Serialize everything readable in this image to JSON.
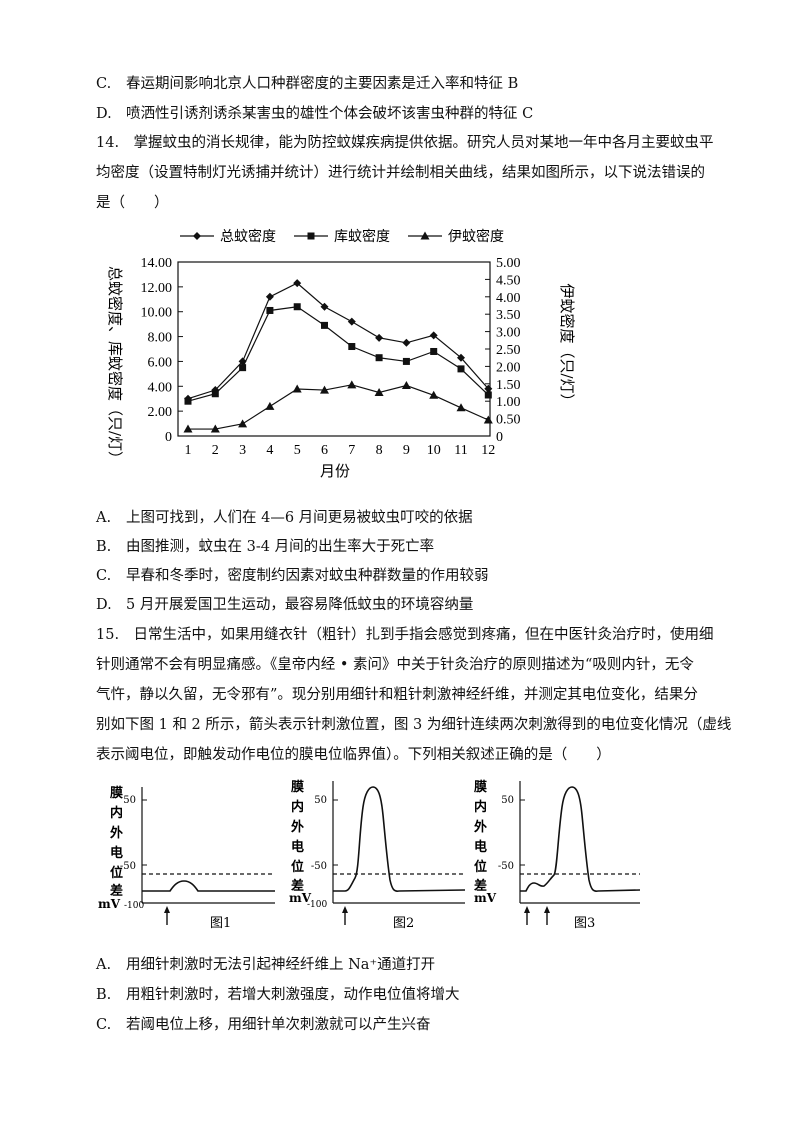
{
  "q13": {
    "optC": {
      "label": "C.",
      "text": "春运期间影响北京人口种群密度的主要因素是迁入率和特征 B"
    },
    "optD": {
      "label": "D.",
      "text": "喷洒性引诱剂诱杀某害虫的雄性个体会破坏该害虫种群的特征 C"
    }
  },
  "q14": {
    "stem": [
      "14.　掌握蚊虫的消长规律，能为防控蚊媒疾病提供依据。研究人员对某地一年中各月主要蚊虫平",
      "均密度（设置特制灯光诱捕并统计）进行统计并绘制相关曲线，结果如图所示，以下说法错误的",
      "是（　　）"
    ],
    "options": [
      {
        "label": "A.",
        "text": "上图可找到，人们在 4—6 月间更易被蚊虫叮咬的依据"
      },
      {
        "label": "B.",
        "text": "由图推测，蚊虫在 3-4 月间的出生率大于死亡率"
      },
      {
        "label": "C.",
        "text": "早春和冬季时，密度制约因素对蚊虫种群数量的作用较弱"
      },
      {
        "label": "D.",
        "text": "5 月开展爱国卫生运动，最容易降低蚊虫的环境容纳量"
      }
    ]
  },
  "chart_data": {
    "type": "line",
    "x": [
      1,
      2,
      3,
      4,
      5,
      6,
      7,
      8,
      9,
      10,
      11,
      12
    ],
    "xlabel": "月份",
    "ylabel": "总蚊密度、库蚊密度（只/灯）",
    "y2label": "伊蚊密度（只/灯）",
    "ylim": [
      0,
      14
    ],
    "y2lim": [
      0,
      5
    ],
    "yticks": [
      "0",
      "2.00",
      "4.00",
      "6.00",
      "8.00",
      "10.00",
      "12.00",
      "14.00"
    ],
    "y2ticks": [
      "0",
      "0.50",
      "1.00",
      "1.50",
      "2.00",
      "2.50",
      "3.00",
      "3.50",
      "4.00",
      "4.50",
      "5.00"
    ],
    "series": [
      {
        "name": "总蚊密度",
        "marker": "diamond",
        "axis": "left",
        "values": [
          3.0,
          3.7,
          6.0,
          11.2,
          12.3,
          10.4,
          9.2,
          7.9,
          7.5,
          8.1,
          6.3,
          3.8
        ]
      },
      {
        "name": "库蚊密度",
        "marker": "square",
        "axis": "left",
        "values": [
          2.8,
          3.4,
          5.5,
          10.1,
          10.4,
          8.9,
          7.2,
          6.3,
          6.0,
          6.8,
          5.4,
          3.3
        ]
      },
      {
        "name": "伊蚊密度",
        "marker": "triangle",
        "axis": "right",
        "values": [
          0.2,
          0.2,
          0.35,
          0.85,
          1.35,
          1.32,
          1.47,
          1.25,
          1.45,
          1.17,
          0.81,
          0.46
        ]
      }
    ],
    "legend": "top"
  },
  "q15": {
    "stem": [
      "15.　日常生活中，如果用缝衣针（粗针）扎到手指会感觉到疼痛，但在中医针灸治疗时，使用细",
      "针则通常不会有明显痛感。《皇帝内经 • 素问》中关于针灸治疗的原则描述为“吸则内针，无令",
      "气忤，静以久留，无令邪有”。现分别用细针和粗针刺激神经纤维，并测定其电位变化，结果分",
      "别如下图 1 和 2 所示，箭头表示针刺激位置，图 3 为细针连续两次刺激得到的电位变化情况（虚线",
      "表示阈电位，即触发动作电位的膜电位临界值）。下列相关叙述正确的是（　　）"
    ],
    "figs": {
      "ylabel_chars": [
        "膜",
        "内",
        "外",
        "电",
        "位",
        "差"
      ],
      "unit": "mV",
      "tick_50": "50",
      "tick_m50": "-50",
      "tick_m100": "-100",
      "titles": [
        "图1",
        "图2",
        "图3"
      ]
    },
    "options": [
      {
        "label": "A.",
        "text": "用细针刺激时无法引起神经纤维上 Na⁺通道打开"
      },
      {
        "label": "B.",
        "text": "用粗针刺激时，若增大刺激强度，动作电位值将增大"
      },
      {
        "label": "C.",
        "text": "若阈电位上移，用细针单次刺激就可以产生兴奋"
      }
    ]
  }
}
